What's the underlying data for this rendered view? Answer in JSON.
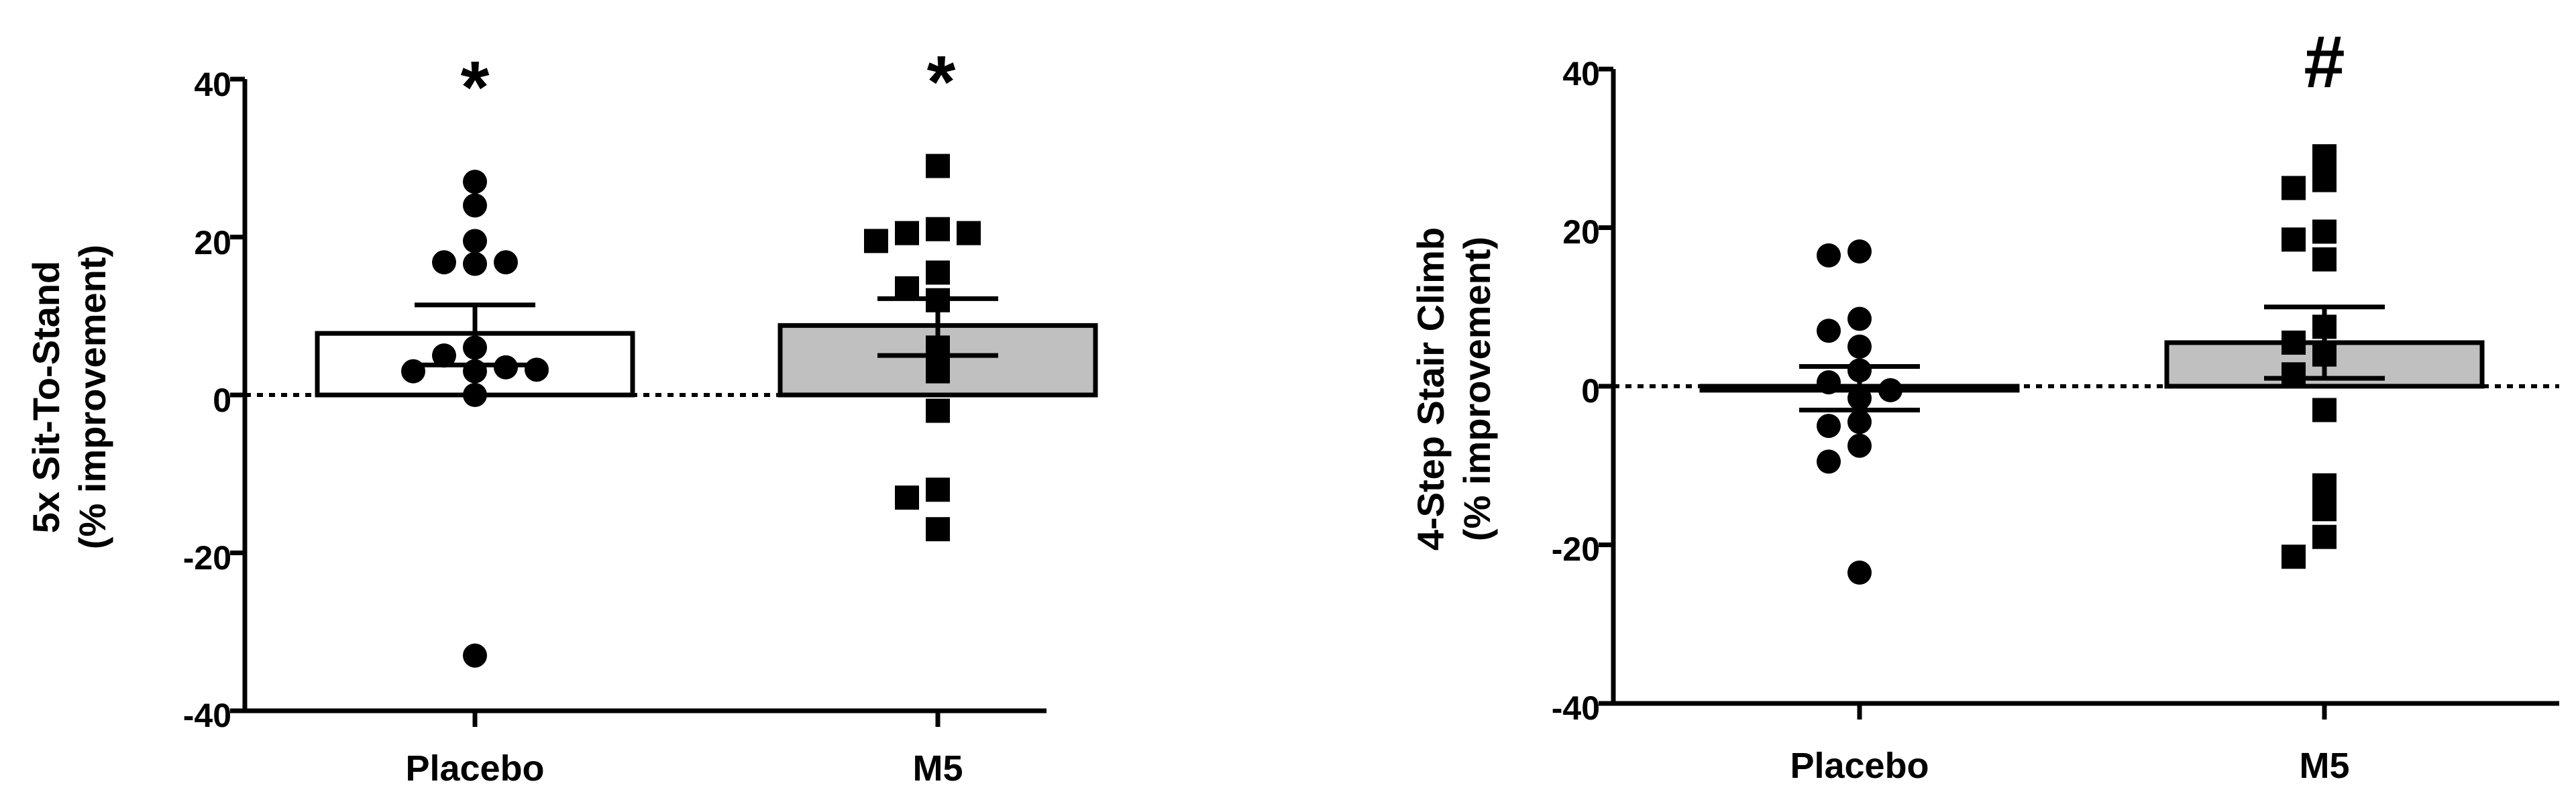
{
  "chart_data": [
    {
      "type": "bar",
      "categories": [
        "Placebo",
        "M5"
      ],
      "ylabel_line1": "5x Sit-To-Stand",
      "ylabel_line2": "(% improvement)",
      "ylim": [
        -40,
        40
      ],
      "yticks": [
        40,
        20,
        0,
        -20,
        -40
      ],
      "ytick_labels": [
        "40",
        "20",
        "0",
        "-20",
        "-40"
      ],
      "reference_line": 0,
      "bars": [
        {
          "category": "Placebo",
          "mean": 7.8,
          "sem_low": 3.8,
          "sem_high": 11.4,
          "fill": "#ffffff",
          "marker": "circle",
          "annotation": "*",
          "points": [
            27,
            24,
            19.5,
            16.8,
            16.8,
            16.6,
            6,
            5,
            3.5,
            3,
            3,
            3.2,
            0,
            -33
          ]
        },
        {
          "category": "M5",
          "mean": 8.8,
          "sem_low": 5,
          "sem_high": 12.2,
          "fill": "#c0c0c0",
          "marker": "square",
          "annotation": "*",
          "points": [
            29,
            21,
            20.5,
            20.5,
            19.5,
            15.5,
            13.5,
            12,
            6,
            3,
            -2,
            -12,
            -13,
            -17
          ]
        }
      ]
    },
    {
      "type": "bar",
      "categories": [
        "Placebo",
        "M5"
      ],
      "ylabel_line1": "4-Step Stair Climb",
      "ylabel_line2": "(% improvement)",
      "ylim": [
        -40,
        40
      ],
      "yticks": [
        40,
        20,
        0,
        -20,
        -40
      ],
      "ytick_labels": [
        "40",
        "20",
        "0",
        "-20",
        "-40"
      ],
      "reference_line": 0,
      "bars": [
        {
          "category": "Placebo",
          "mean": -0.5,
          "sem_low": -3,
          "sem_high": 2.5,
          "fill": "#ffffff",
          "marker": "circle",
          "annotation": "",
          "points": [
            17,
            16.5,
            8.5,
            7,
            5,
            2,
            0.5,
            -0.5,
            -1.5,
            -4.5,
            -5,
            -7.5,
            -9.5,
            -23.5
          ]
        },
        {
          "category": "M5",
          "mean": 5.5,
          "sem_low": 1,
          "sem_high": 10,
          "fill": "#c0c0c0",
          "marker": "square",
          "annotation": "#",
          "points": [
            29,
            26,
            25,
            19.5,
            18.5,
            16,
            7.5,
            5.5,
            4,
            1.5,
            -3,
            -12.5,
            -15.5,
            -19,
            -21.5
          ]
        }
      ]
    }
  ]
}
